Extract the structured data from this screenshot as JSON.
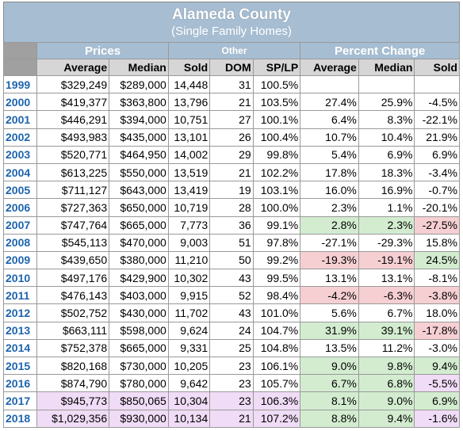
{
  "header": {
    "title": "Alameda County",
    "subtitle": "(Single Family Homes)"
  },
  "table": {
    "groups": [
      "Prices",
      "Other",
      "Percent Change"
    ],
    "columns": [
      "Average",
      "Median",
      "Sold",
      "DOM",
      "SP/LP",
      "Average",
      "Median",
      "Sold"
    ],
    "rows": [
      [
        "1999",
        "$329,249",
        "$289,000",
        "14,448",
        "31",
        "100.5%"
      ],
      [
        "2000",
        "$419,377",
        "$363,800",
        "13,796",
        "21",
        "103.5%",
        "27.4%",
        "25.9%",
        "-4.5%"
      ],
      [
        "2001",
        "$446,291",
        "$394,000",
        "10,751",
        "27",
        "100.1%",
        "6.4%",
        "8.3%",
        "-22.1%"
      ],
      [
        "2002",
        "$493,983",
        "$435,000",
        "13,101",
        "26",
        "100.4%",
        "10.7%",
        "10.4%",
        "21.9%"
      ],
      [
        "2003",
        "$520,771",
        "$464,950",
        "14,002",
        "29",
        "99.8%",
        "5.4%",
        "6.9%",
        "6.9%"
      ],
      [
        "2004",
        "$613,225",
        "$550,000",
        "13,519",
        "21",
        "102.2%",
        "17.8%",
        "18.3%",
        "-3.4%"
      ],
      [
        "2005",
        "$711,127",
        "$643,000",
        "13,419",
        "19",
        "103.1%",
        "16.0%",
        "16.9%",
        "-0.7%"
      ],
      [
        "2006",
        "$727,363",
        "$650,000",
        "10,719",
        "28",
        "100.0%",
        "2.3%",
        "1.1%",
        "-20.1%"
      ],
      [
        "2007",
        "$747,764",
        "$665,000",
        "7,773",
        "36",
        "99.1%",
        "2.8%",
        "2.3%",
        "-27.5%"
      ],
      [
        "2008",
        "$545,113",
        "$470,000",
        "9,003",
        "51",
        "97.8%",
        "-27.1%",
        "-29.3%",
        "15.8%"
      ],
      [
        "2009",
        "$439,650",
        "$380,000",
        "11,210",
        "50",
        "99.2%",
        "-19.3%",
        "-19.1%",
        "24.5%"
      ],
      [
        "2010",
        "$497,176",
        "$429,900",
        "10,302",
        "43",
        "99.5%",
        "13.1%",
        "13.1%",
        "-8.1%"
      ],
      [
        "2011",
        "$476,143",
        "$403,000",
        "9,915",
        "52",
        "98.4%",
        "-4.2%",
        "-6.3%",
        "-3.8%"
      ],
      [
        "2012",
        "$502,752",
        "$430,000",
        "11,702",
        "43",
        "101.0%",
        "5.6%",
        "6.7%",
        "18.0%"
      ],
      [
        "2013",
        "$663,111",
        "$598,000",
        "9,624",
        "24",
        "104.7%",
        "31.9%",
        "39.1%",
        "-17.8%"
      ],
      [
        "2014",
        "$752,378",
        "$665,000",
        "9,331",
        "25",
        "104.8%",
        "13.5%",
        "11.2%",
        "-3.0%"
      ],
      [
        "2015",
        "$820,168",
        "$730,000",
        "10,205",
        "23",
        "106.1%",
        "9.0%",
        "9.8%",
        "9.4%"
      ],
      [
        "2016",
        "$874,790",
        "$780,000",
        "9,642",
        "23",
        "105.7%",
        "6.7%",
        "6.8%",
        "-5.5%"
      ],
      [
        "2017",
        "$945,773",
        "$850,065",
        "10,304",
        "23",
        "106.3%",
        "8.1%",
        "9.0%",
        "6.9%"
      ],
      [
        "2018",
        "$1,029,356",
        "$930,000",
        "10,134",
        "21",
        "107.2%",
        "8.8%",
        "9.4%",
        "-1.6%"
      ]
    ]
  }
}
